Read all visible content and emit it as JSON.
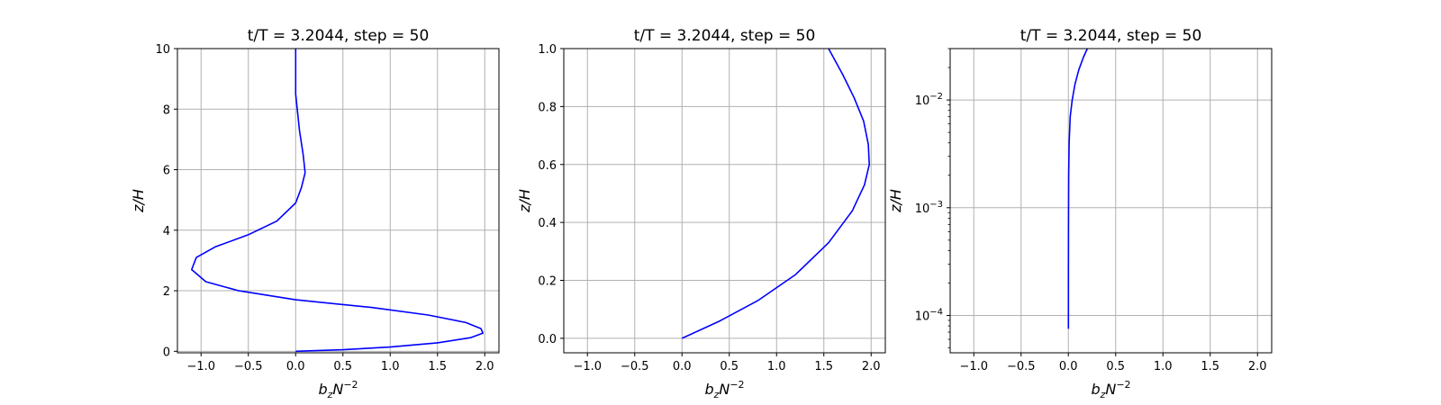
{
  "chart_data": [
    {
      "type": "line",
      "title": "t/T = 3.2044, step = 50",
      "xlabel": "b_zN^{-2}",
      "ylabel": "z/H",
      "xlim": [
        -1.25,
        2.15
      ],
      "ylim": [
        -0.05,
        10.0
      ],
      "xticks": [
        -1.0,
        -0.5,
        0.0,
        0.5,
        1.0,
        1.5,
        2.0
      ],
      "xtick_labels": [
        "−1.0",
        "−0.5",
        "0.0",
        "0.5",
        "1.0",
        "1.5",
        "2.0"
      ],
      "yscale": "linear",
      "yticks": [
        0,
        2,
        4,
        6,
        8,
        10
      ],
      "ytick_labels": [
        "0",
        "2",
        "4",
        "6",
        "8",
        "10"
      ],
      "grid": true,
      "series": [
        {
          "color": "#0000ff",
          "x": [
            0.0,
            0.5,
            1.0,
            1.5,
            1.85,
            1.98,
            1.96,
            1.8,
            1.4,
            0.8,
            0.0,
            -0.6,
            -0.95,
            -1.1,
            -1.05,
            -0.85,
            -0.5,
            -0.2,
            0.0,
            0.06,
            0.1,
            0.08,
            0.04,
            0.0,
            0.0
          ],
          "y": [
            0.0,
            0.05,
            0.14,
            0.28,
            0.45,
            0.6,
            0.75,
            0.95,
            1.2,
            1.45,
            1.7,
            2.0,
            2.3,
            2.7,
            3.1,
            3.45,
            3.85,
            4.3,
            4.9,
            5.4,
            5.9,
            6.5,
            7.3,
            8.5,
            10.0
          ]
        }
      ]
    },
    {
      "type": "line",
      "title": "t/T = 3.2044, step = 50",
      "xlabel": "b_zN^{-2}",
      "ylabel": "z/H",
      "xlim": [
        -1.25,
        2.15
      ],
      "ylim": [
        -0.05,
        1.0
      ],
      "xticks": [
        -1.0,
        -0.5,
        0.0,
        0.5,
        1.0,
        1.5,
        2.0
      ],
      "xtick_labels": [
        "−1.0",
        "−0.5",
        "0.0",
        "0.5",
        "1.0",
        "1.5",
        "2.0"
      ],
      "yscale": "linear",
      "yticks": [
        0.0,
        0.2,
        0.4,
        0.6,
        0.8,
        1.0
      ],
      "ytick_labels": [
        "0.0",
        "0.2",
        "0.4",
        "0.6",
        "0.8",
        "1.0"
      ],
      "grid": true,
      "series": [
        {
          "color": "#0000ff",
          "x": [
            0.0,
            0.4,
            0.8,
            1.2,
            1.55,
            1.8,
            1.93,
            1.98,
            1.97,
            1.92,
            1.82,
            1.7,
            1.55
          ],
          "y": [
            0.0,
            0.06,
            0.13,
            0.22,
            0.33,
            0.44,
            0.53,
            0.6,
            0.67,
            0.75,
            0.83,
            0.91,
            1.0
          ]
        }
      ]
    },
    {
      "type": "line",
      "title": "t/T = 3.2044, step = 50",
      "xlabel": "b_zN^{-2}",
      "ylabel": "z/H",
      "xlim": [
        -1.25,
        2.15
      ],
      "ylim": [
        4.5e-05,
        0.03
      ],
      "xticks": [
        -1.0,
        -0.5,
        0.0,
        0.5,
        1.0,
        1.5,
        2.0
      ],
      "xtick_labels": [
        "−1.0",
        "−0.5",
        "0.0",
        "0.5",
        "1.0",
        "1.5",
        "2.0"
      ],
      "yscale": "log",
      "yticks": [
        0.0001,
        0.001,
        0.01
      ],
      "ytick_labels": [
        {
          "base": "10",
          "exp": "−4"
        },
        {
          "base": "10",
          "exp": "−3"
        },
        {
          "base": "10",
          "exp": "−2"
        }
      ],
      "grid": true,
      "series": [
        {
          "color": "#0000ff",
          "x": [
            0.0,
            0.0,
            0.001,
            0.003,
            0.008,
            0.02,
            0.04,
            0.07,
            0.11,
            0.16,
            0.2
          ],
          "y": [
            7.5e-05,
            0.0002,
            0.0007,
            0.002,
            0.004,
            0.007,
            0.01,
            0.014,
            0.019,
            0.025,
            0.03
          ]
        }
      ]
    }
  ]
}
